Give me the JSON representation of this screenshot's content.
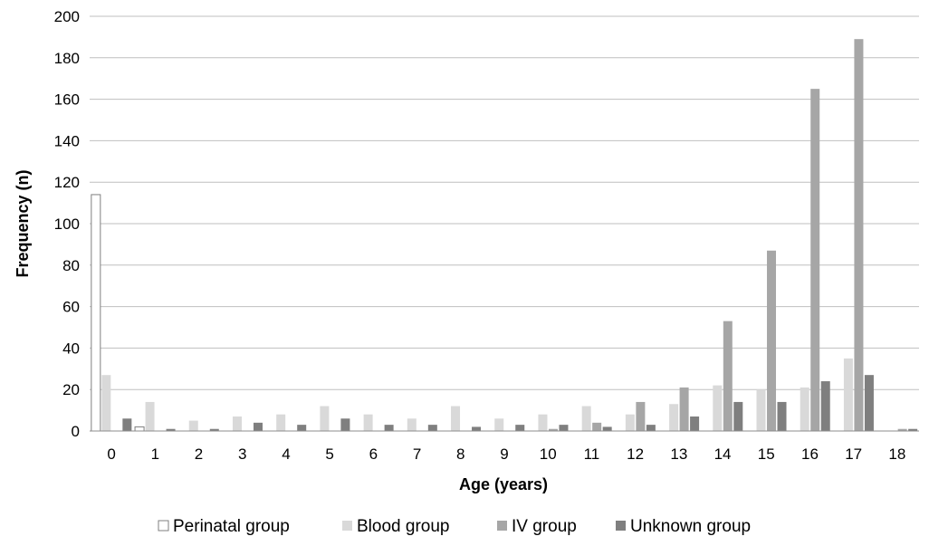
{
  "chart_data": {
    "type": "bar",
    "title": "",
    "xlabel": "Age (years)",
    "ylabel": "Frequency (n)",
    "ylim": [
      0,
      200
    ],
    "yticks": [
      0,
      20,
      40,
      60,
      80,
      100,
      120,
      140,
      160,
      180,
      200
    ],
    "grid": true,
    "legend_position": "bottom",
    "categories": [
      "0",
      "1",
      "2",
      "3",
      "4",
      "5",
      "6",
      "7",
      "8",
      "9",
      "10",
      "11",
      "12",
      "13",
      "14",
      "15",
      "16",
      "17",
      "18"
    ],
    "series": [
      {
        "name": "Perinatal group",
        "color": "#ffffff",
        "stroke": "#7f7f7f",
        "values": [
          114,
          2,
          0,
          0,
          0,
          0,
          0,
          0,
          0,
          0,
          0,
          0,
          0,
          0,
          0,
          0,
          0,
          0,
          0
        ]
      },
      {
        "name": "Blood group",
        "color": "#d9d9d9",
        "stroke": "none",
        "values": [
          27,
          14,
          5,
          7,
          8,
          12,
          8,
          6,
          12,
          6,
          8,
          12,
          8,
          13,
          22,
          20,
          21,
          35,
          0
        ]
      },
      {
        "name": "IV group",
        "color": "#a6a6a6",
        "stroke": "none",
        "values": [
          0,
          0,
          0,
          0,
          0,
          0,
          0,
          0,
          0,
          0,
          1,
          4,
          14,
          21,
          53,
          87,
          165,
          189,
          1
        ]
      },
      {
        "name": "Unknown group",
        "color": "#7f7f7f",
        "stroke": "none",
        "values": [
          6,
          1,
          1,
          4,
          3,
          6,
          3,
          3,
          2,
          3,
          3,
          2,
          3,
          7,
          14,
          14,
          24,
          27,
          1
        ]
      }
    ]
  }
}
